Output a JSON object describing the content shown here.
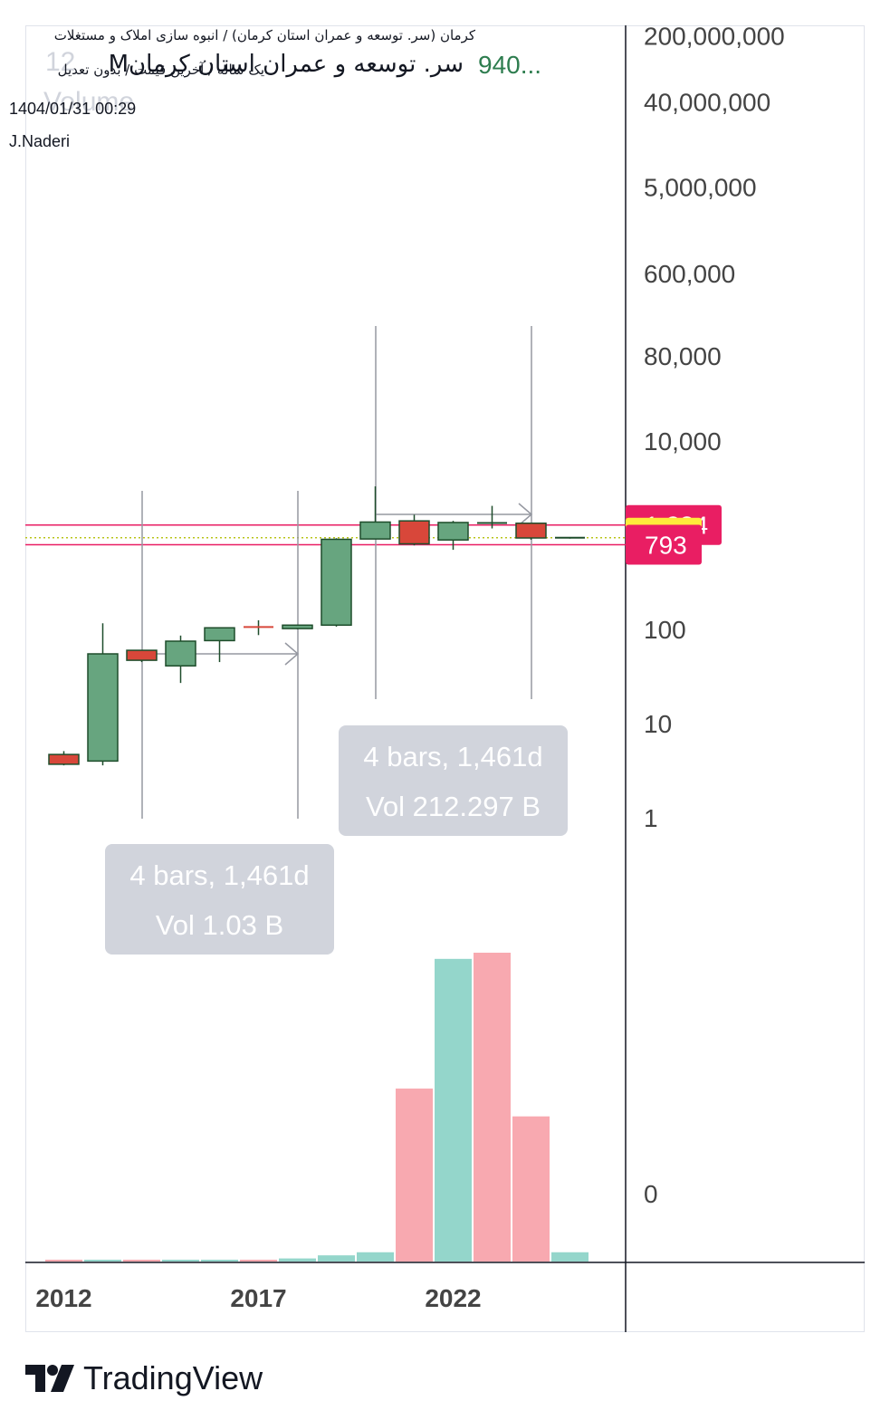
{
  "header": {
    "symbol_line": "کرمان (سر. توسعه و عمران استان کرمان) / انبوه سازی املاک و مستغلات",
    "settings_line": "یک ساله / آخرین قیمت / بدون تعدیل",
    "timestamp": "1404/01/31 00:29",
    "author": "J.Naderi"
  },
  "legend_ghost": {
    "title": "سر. توسعه و عمران استان کرمان",
    "prefix": "M",
    "price": "940...",
    "interval": "12",
    "volume_label": "Volume"
  },
  "colors": {
    "up_candle": "#67a57f",
    "down_candle": "#d8473a",
    "candle_border": "#1e4d2b",
    "level_line": "#e91e63",
    "price_dotted": "#b8c41a",
    "price_badge": "#ffeb3b",
    "level_badge": "#e91e63",
    "vol_up": "#94d6cb",
    "vol_down": "#f8a9b0",
    "measure_box": "#d1d4dc",
    "measure_text": "#ffffff"
  },
  "chart_data": {
    "type": "candlestick",
    "interval": "1 year",
    "price_scale": "log",
    "y_ticks": [
      "200,000,000",
      "40,000,000",
      "5,000,000",
      "600,000",
      "80,000",
      "10,000",
      "100",
      "10",
      "1"
    ],
    "x_ticks": [
      "2012",
      "2017",
      "2022"
    ],
    "volume_scale_tick": "0",
    "candles": [
      {
        "year": 2012,
        "open": 4.7,
        "high": 5.1,
        "low": 3.6,
        "close": 3.7
      },
      {
        "year": 2013,
        "open": 4.0,
        "high": 116,
        "low": 3.6,
        "close": 55
      },
      {
        "year": 2014,
        "open": 60,
        "high": 60,
        "low": 45,
        "close": 47
      },
      {
        "year": 2015,
        "open": 41,
        "high": 86,
        "low": 27,
        "close": 75
      },
      {
        "year": 2016,
        "open": 76,
        "high": 104,
        "low": 45,
        "close": 104
      },
      {
        "year": 2017,
        "open": 106,
        "high": 125,
        "low": 87,
        "close": 104
      },
      {
        "year": 2018,
        "open": 102,
        "high": 111,
        "low": 100,
        "close": 111
      },
      {
        "year": 2019,
        "open": 111,
        "high": 930,
        "low": 107,
        "close": 905
      },
      {
        "year": 2020,
        "open": 912,
        "high": 3300,
        "low": 912,
        "close": 1380
      },
      {
        "year": 2021,
        "open": 1420,
        "high": 1650,
        "low": 780,
        "close": 810
      },
      {
        "year": 2022,
        "open": 890,
        "high": 1420,
        "low": 700,
        "close": 1365
      },
      {
        "year": 2023,
        "open": 1350,
        "high": 2050,
        "low": 1180,
        "close": 1350
      },
      {
        "year": 2024,
        "open": 1340,
        "high": 1340,
        "low": 895,
        "close": 935
      },
      {
        "year": 2025,
        "open": 940,
        "high": 940,
        "low": 920,
        "close": 940
      }
    ],
    "volume_relative": [
      0.004,
      0.004,
      0.004,
      0.004,
      0.004,
      0.004,
      0.01,
      0.02,
      0.03,
      0.56,
      0.98,
      1.0,
      0.47,
      0.03
    ],
    "volume_direction": [
      "down",
      "up",
      "down",
      "up",
      "up",
      "down",
      "up",
      "up",
      "up",
      "down",
      "up",
      "down",
      "down",
      "up"
    ],
    "last_price": "940",
    "levels": [
      {
        "label": "1,284",
        "value": 1284
      },
      {
        "label": "793",
        "value": 793
      }
    ],
    "measures": [
      {
        "bars_text": "4 bars, 1,461d",
        "vol_text": "Vol 1.03 B",
        "from_year": 2014,
        "to_year": 2018
      },
      {
        "bars_text": "4 bars, 1,461d",
        "vol_text": "Vol 212.297 B",
        "from_year": 2020,
        "to_year": 2024
      }
    ]
  },
  "branding": {
    "name": "TradingView"
  }
}
